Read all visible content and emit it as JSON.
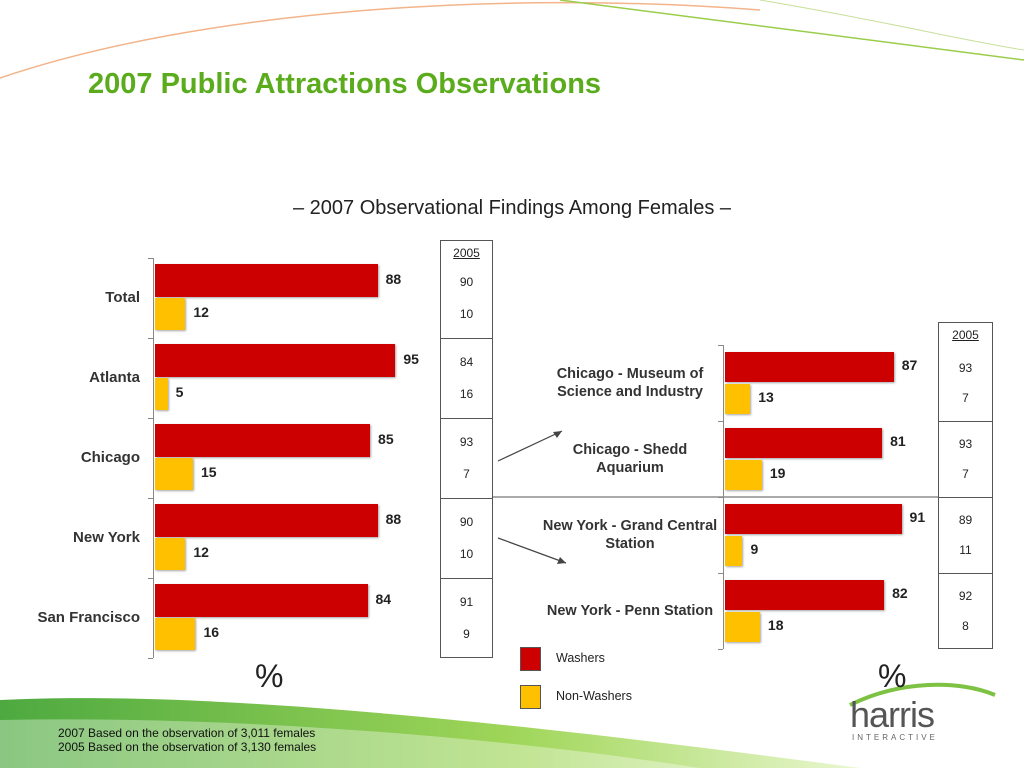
{
  "title": "2007 Public Attractions Observations",
  "subtitle": "– 2007 Observational Findings Among Females –",
  "chart_data": [
    {
      "type": "bar",
      "orientation": "horizontal",
      "categories": [
        "Total",
        "Atlanta",
        "Chicago",
        "New York",
        "San Francisco"
      ],
      "series": [
        {
          "name": "Washers",
          "color": "#cc0000",
          "values": [
            88,
            95,
            85,
            88,
            84
          ]
        },
        {
          "name": "Non-Washers",
          "color": "#ffc000",
          "values": [
            12,
            5,
            15,
            12,
            16
          ]
        }
      ],
      "xlim": [
        0,
        100
      ],
      "unit_label": "%",
      "comparison": {
        "header": "2005",
        "rows": [
          [
            90,
            10
          ],
          [
            84,
            16
          ],
          [
            93,
            7
          ],
          [
            90,
            10
          ],
          [
            91,
            9
          ]
        ]
      }
    },
    {
      "type": "bar",
      "orientation": "horizontal",
      "categories": [
        "Chicago - Museum of Science and Industry",
        "Chicago - Shedd Aquarium",
        "New York - Grand Central Station",
        "New York - Penn Station"
      ],
      "series": [
        {
          "name": "Washers",
          "color": "#cc0000",
          "values": [
            87,
            81,
            91,
            82
          ]
        },
        {
          "name": "Non-Washers",
          "color": "#ffc000",
          "values": [
            13,
            19,
            9,
            18
          ]
        }
      ],
      "xlim": [
        0,
        100
      ],
      "unit_label": "%",
      "comparison": {
        "header": "2005",
        "rows": [
          [
            93,
            7
          ],
          [
            93,
            7
          ],
          [
            89,
            11
          ],
          [
            92,
            8
          ]
        ]
      }
    }
  ],
  "footnotes": [
    "2007 Based on the observation of 3,011 females",
    "2005 Based on the observation of 3,130 females"
  ],
  "logo": {
    "name": "harris",
    "tagline": "INTERACTIVE"
  }
}
